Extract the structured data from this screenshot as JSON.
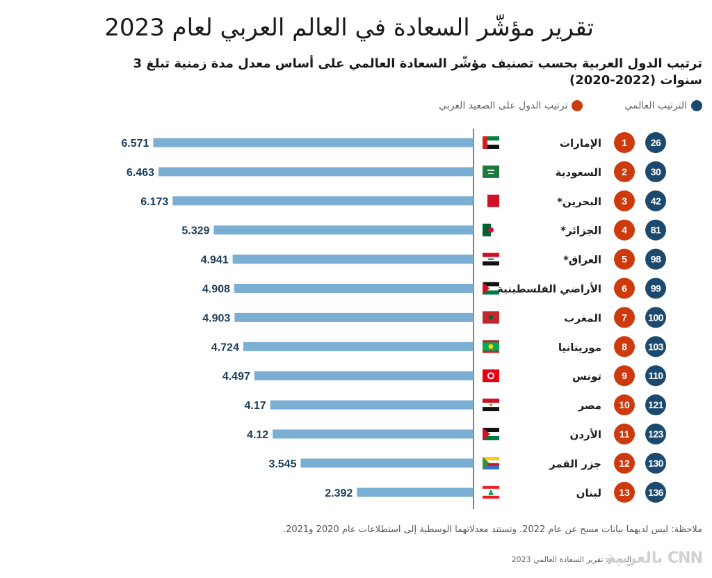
{
  "header": {
    "title": "تقرير مؤشّر السعادة في العالم العربي لعام 2023",
    "subtitle": "ترتيب الدول العربية بحسب تصنيف مؤشّر السعادة العالمي على أساس معدل مدة زمنية تبلغ 3 سنوات (2022-2020)"
  },
  "legend": {
    "global_rank": {
      "label": "الترتيب العالمي",
      "color": "#1c4a6e"
    },
    "arab_rank": {
      "label": "ترتيب الدول على الصعيد العربي",
      "color": "#cc3a0e"
    }
  },
  "colors": {
    "bar": "#7aaed3",
    "value_text": "#1c3d5a",
    "axis": "#555555",
    "global_circle": "#1c4a6e",
    "arab_circle": "#cc3a0e"
  },
  "chart_data": {
    "type": "bar",
    "orientation": "horizontal",
    "direction": "right-to-left",
    "title": "تقرير مؤشّر السعادة في العالم العربي لعام 2023",
    "xlabel": "",
    "ylabel": "",
    "xlim": [
      0,
      7
    ],
    "grid": false,
    "categories": [
      "الإمارات",
      "السعودية",
      "البحرين*",
      "الجزائر*",
      "العراق*",
      "الأراضي الفلسطينية",
      "المغرب",
      "موريتانيا",
      "تونس",
      "مصر",
      "الأردن",
      "جزر القمر",
      "لبنان"
    ],
    "values": [
      6.571,
      6.463,
      6.173,
      5.329,
      4.941,
      4.908,
      4.903,
      4.724,
      4.497,
      4.17,
      4.12,
      3.545,
      2.392
    ],
    "value_labels": [
      "6.571",
      "6.463",
      "6.173",
      "5.329",
      "4.941",
      "4.908",
      "4.903",
      "4.724",
      "4.497",
      "4.17",
      "4.12",
      "3.545",
      "2.392"
    ],
    "arab_rank": [
      1,
      2,
      3,
      4,
      5,
      6,
      7,
      8,
      9,
      10,
      11,
      12,
      13
    ],
    "global_rank": [
      26,
      30,
      42,
      81,
      98,
      99,
      100,
      103,
      110,
      121,
      123,
      130,
      136
    ],
    "flags": [
      "uae",
      "saudi",
      "bahrain",
      "algeria",
      "iraq",
      "palestine",
      "morocco",
      "mauritania",
      "tunisia",
      "egypt",
      "jordan",
      "comoros",
      "lebanon"
    ],
    "legend": [
      "الترتيب العالمي",
      "ترتيب الدول على الصعيد العربي"
    ],
    "legend_position": "top-right"
  },
  "footer": {
    "note": "ملاحظة: ليس لديهما بيانات مسح عن عام 2022. وتستند معدلاتهما الوسطية إلى استطلاعات عام 2020 و2021.",
    "source": "المصدر: تقرير السعادة العالمي 2023",
    "logo": "CNN بالعربية"
  }
}
